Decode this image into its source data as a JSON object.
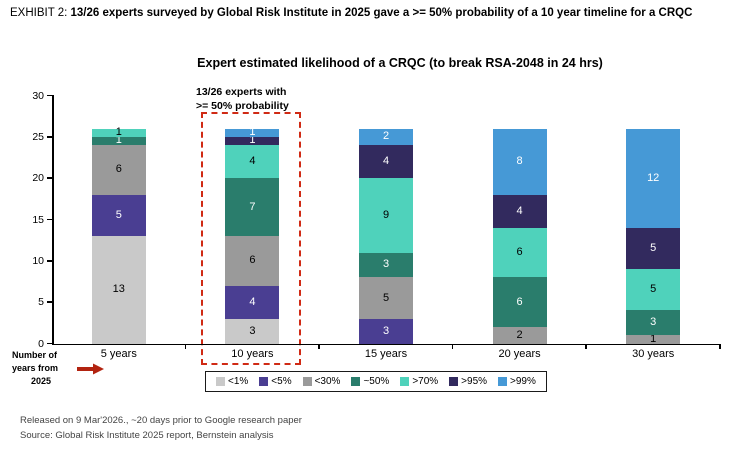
{
  "header": {
    "prefix": "EXHIBIT 2:",
    "title": "13/26 experts surveyed by Global Risk Institute in 2025 gave a >= 50% probability of a 10 year timeline for a CRQC"
  },
  "chart": {
    "title": "Expert estimated likelihood of a CRQC (to break RSA-2048 in 24 hrs)",
    "annotation_line1": "13/26 experts with",
    "annotation_line2": ">= 50% probability",
    "xaxis_note_line1": "Number of",
    "xaxis_note_line2": "years from",
    "xaxis_note_line3": "2025",
    "highlight_color": "#d02a14",
    "arrow_color": "#b22310"
  },
  "chart_data": {
    "type": "bar",
    "stacked": true,
    "title": "Expert estimated likelihood of a CRQC (to break RSA-2048 in 24 hrs)",
    "categories": [
      "5 years",
      "10 years",
      "15 years",
      "20 years",
      "30 years"
    ],
    "series": [
      {
        "name": "<1%",
        "color": "#c9c9c9",
        "label_color": "#000000",
        "values": [
          13,
          3,
          0,
          0,
          0
        ]
      },
      {
        "name": "<5%",
        "color": "#4a3e92",
        "label_color": "#ffffff",
        "values": [
          5,
          4,
          3,
          0,
          0
        ]
      },
      {
        "name": "<30%",
        "color": "#9a9a9a",
        "label_color": "#000000",
        "values": [
          6,
          6,
          5,
          2,
          1
        ]
      },
      {
        "name": "~50%",
        "color": "#2a7d6c",
        "label_color": "#ffffff",
        "values": [
          1,
          7,
          3,
          6,
          3
        ]
      },
      {
        "name": ">70%",
        "color": "#4fd2bb",
        "label_color": "#000000",
        "values": [
          1,
          4,
          9,
          6,
          5
        ]
      },
      {
        "name": ">95%",
        "color": "#322a5e",
        "label_color": "#ffffff",
        "values": [
          0,
          1,
          4,
          4,
          5
        ]
      },
      {
        "name": ">99%",
        "color": "#4699d6",
        "label_color": "#ffffff",
        "values": [
          0,
          1,
          2,
          8,
          12
        ]
      }
    ],
    "ylim": [
      0,
      30
    ],
    "yticks": [
      0,
      5,
      10,
      15,
      20,
      25,
      30
    ],
    "xlabel": "Number of years from 2025",
    "ylabel": "",
    "grid": false,
    "legend_position": "bottom",
    "highlight": {
      "category": "10 years",
      "note": "13/26 experts with >= 50% probability"
    }
  },
  "footer": {
    "line1": "Released on 9 Mar'2026., ~20 days prior to Google research paper",
    "line2": "Source: Global Risk Institute 2025 report, Bernstein analysis"
  }
}
